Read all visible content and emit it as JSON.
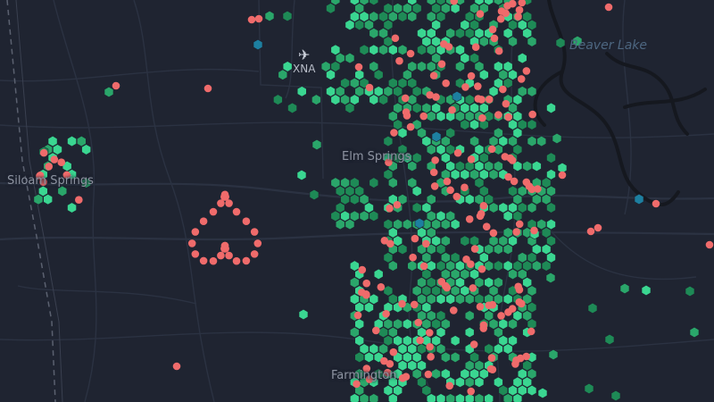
{
  "map": {
    "places": [
      {
        "id": "siloam",
        "label": "Siloam Springs"
      },
      {
        "id": "elm",
        "label": "Elm Springs"
      },
      {
        "id": "farmington",
        "label": "Farmington"
      }
    ],
    "water": [
      {
        "id": "beaver",
        "label": "Beaver Lake"
      }
    ],
    "airport": {
      "code": "XNA",
      "icon": "airplane-icon"
    },
    "colors": {
      "background": "#1f2431",
      "roads": "#2b3242",
      "water": "#15181f",
      "border": "#5b6170",
      "hex_dark": "#1e8a56",
      "hex_mid": "#2aa66a",
      "hex_light": "#3ad691",
      "point_red": "#ef6b6b",
      "hex_blue": "#1d7fa0"
    }
  }
}
